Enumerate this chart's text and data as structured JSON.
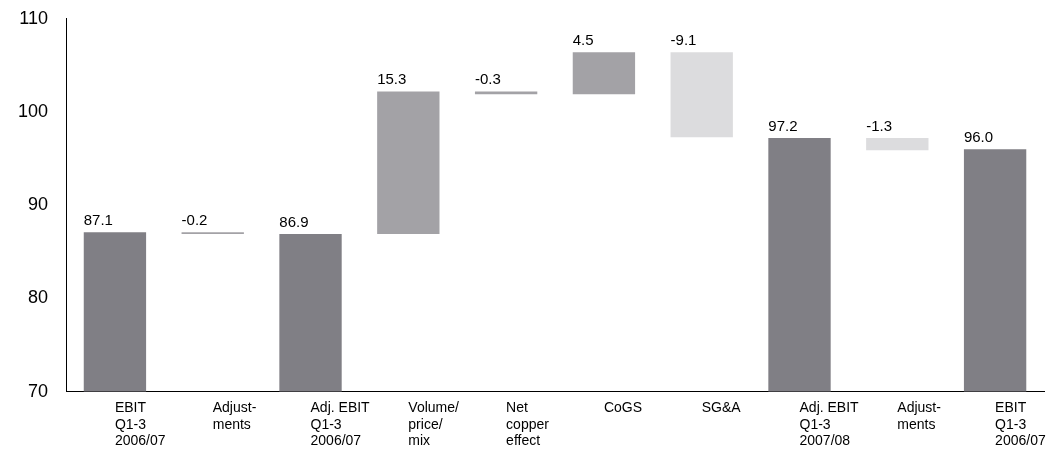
{
  "chart_data": {
    "type": "bar",
    "categories": [
      "EBIT\nQ1-3\n2006/07",
      "Adjust-\nments",
      "Adj. EBIT\nQ1-3\n2006/07",
      "Volume/\nprice/\nmix",
      "Net\ncopper\neffect",
      "CoGS",
      "SG&A",
      "Adj. EBIT\nQ1-3\n2007/08",
      "Adjust-\nments",
      "EBIT\nQ1-3\n2006/07"
    ],
    "values": [
      87.1,
      -0.2,
      86.9,
      15.3,
      -0.3,
      4.5,
      -9.1,
      97.2,
      -1.3,
      96.0
    ],
    "base": [
      null,
      87.1,
      null,
      86.9,
      102.2,
      101.9,
      106.4,
      null,
      97.2,
      null
    ],
    "colors": [
      "#807f85",
      "#a3a2a6",
      "#807f85",
      "#a3a2a6",
      "#a3a2a6",
      "#a3a2a6",
      "#dcdcde",
      "#807f85",
      "#dcdcde",
      "#807f85"
    ],
    "value_labels": [
      "87.1",
      "-0.2",
      "86.9",
      "15.3",
      "-0.3",
      "4.5",
      "-9.1",
      "97.2",
      "-1.3",
      "96.0"
    ],
    "ylim": [
      70,
      110
    ],
    "yticks": [
      70,
      80,
      90,
      100,
      110
    ],
    "grid": false,
    "legend": false
  }
}
